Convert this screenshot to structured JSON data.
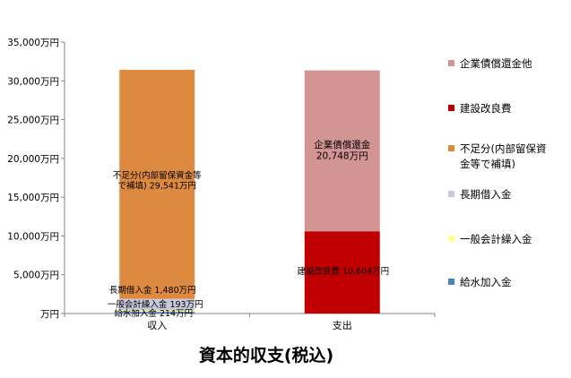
{
  "chart_data": {
    "type": "bar",
    "stacked": true,
    "title": "資本的収支(税込)",
    "categories": [
      "収入",
      "支出"
    ],
    "y_tick_labels": [
      "万円",
      "5,000万円",
      "10,000万円",
      "15,000万円",
      "20,000万円",
      "25,000万円",
      "30,000万円",
      "35,000万円"
    ],
    "ylim": [
      0,
      35000
    ],
    "unit": "万円",
    "grid": false,
    "legend_position": "right",
    "series": [
      {
        "name": "給水加入金",
        "color": "#4F81BD",
        "values": [
          214,
          0
        ],
        "data_labels": [
          "給水加入金 214万円",
          ""
        ]
      },
      {
        "name": "一般会計繰入金",
        "color": "#FFFF99",
        "values": [
          193,
          0
        ],
        "data_labels": [
          "一般会計繰入金 193万円",
          ""
        ]
      },
      {
        "name": "長期借入金",
        "color": "#C8C8DC",
        "values": [
          1480,
          0
        ],
        "data_labels": [
          "長期借入金 1,480万円",
          ""
        ]
      },
      {
        "name": "不足分(内部留保資金等で補填)",
        "color": "#DD8A40",
        "values": [
          29541,
          0
        ],
        "data_labels": [
          "不足分(内部留保資金等で補填) 29,541万円",
          ""
        ]
      },
      {
        "name": "建設改良費",
        "color": "#C00000",
        "values": [
          0,
          10604
        ],
        "data_labels": [
          "",
          "建設改良費 10,604万円"
        ]
      },
      {
        "name": "企業債償還金他",
        "color": "#D39494",
        "values": [
          0,
          20748
        ],
        "data_labels": [
          "",
          "企業債償還金 20,748万円"
        ]
      }
    ]
  }
}
